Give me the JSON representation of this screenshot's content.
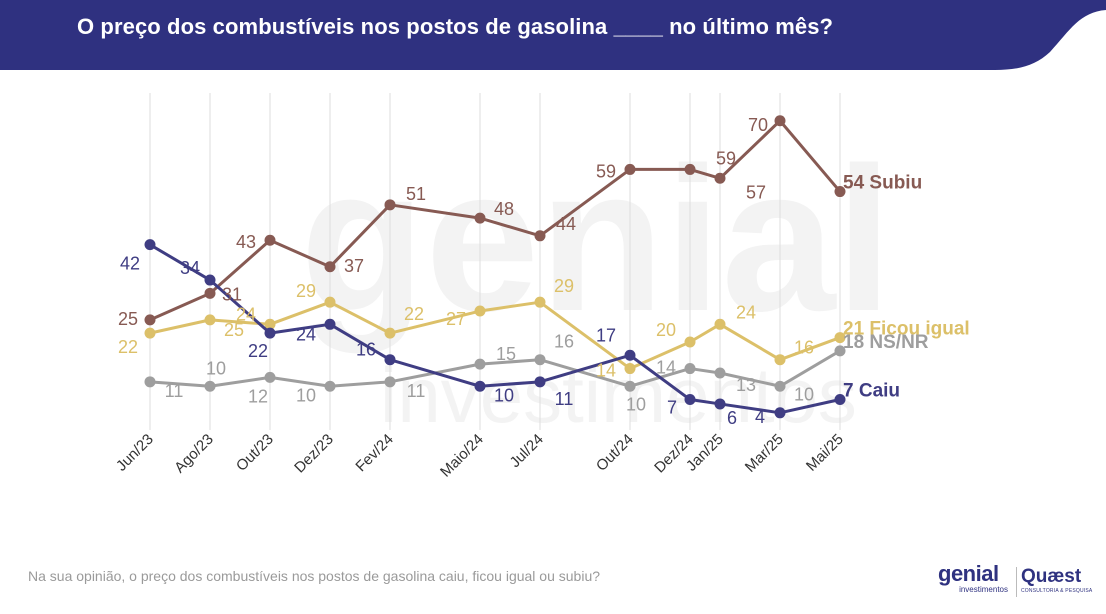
{
  "title": "O preço dos combustíveis nos postos de gasolina ____ no último mês?",
  "footer_question": "Na sua opinião, o preço dos combustíveis nos postos de gasolina caiu, ficou igual ou subiu?",
  "watermark": {
    "word": "genial",
    "sub": "investimentos"
  },
  "logos": {
    "genial": {
      "word": "genial",
      "sub": "investimentos"
    },
    "quaest": {
      "word": "Quæst",
      "sub": "CONSULTORIA & PESQUISA"
    }
  },
  "colors": {
    "banner": "#2f3180",
    "subiu": "#875a53",
    "ficou_igual": "#dcc069",
    "ns_nr": "#9e9e9e",
    "caiu": "#3f3d83",
    "grid": "#dedede"
  },
  "chart_data": {
    "type": "line",
    "x": [
      "Jun/23",
      "Ago/23",
      "Out/23",
      "Dez/23",
      "Fev/24",
      "Maio/24",
      "Jul/24",
      "Out/24",
      "Dez/24",
      "Jan/25",
      "Mar/25",
      "Mai/25"
    ],
    "ylim": [
      0,
      75
    ],
    "grid": "vertical",
    "legend": "end-of-line labels",
    "series": [
      {
        "key": "subiu",
        "name": "Subiu",
        "end_label": "54 Subiu",
        "values": [
          25,
          31,
          43,
          37,
          51,
          48,
          44,
          59,
          59,
          57,
          70,
          54
        ]
      },
      {
        "key": "ficou_igual",
        "name": "Ficou igual",
        "end_label": "21 Ficou igual",
        "values": [
          22,
          25,
          24,
          29,
          22,
          27,
          29,
          14,
          20,
          24,
          16,
          21
        ]
      },
      {
        "key": "ns_nr",
        "name": "NS/NR",
        "end_label": "18 NS/NR",
        "values": [
          11,
          10,
          12,
          10,
          11,
          15,
          16,
          10,
          14,
          13,
          10,
          18
        ]
      },
      {
        "key": "caiu",
        "name": "Caiu",
        "end_label": "7 Caiu",
        "values": [
          42,
          34,
          22,
          24,
          16,
          10,
          11,
          17,
          7,
          6,
          4,
          7
        ]
      }
    ]
  }
}
